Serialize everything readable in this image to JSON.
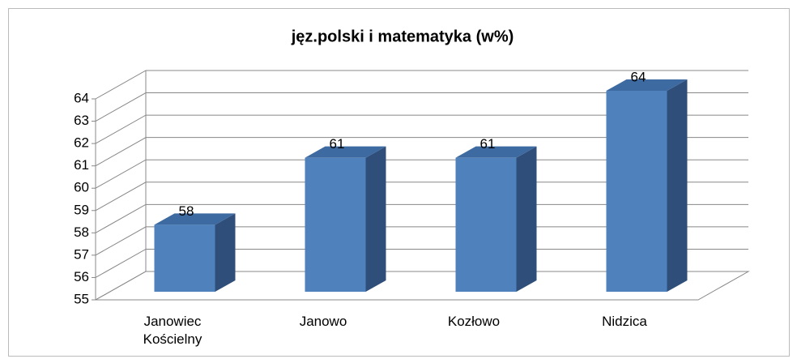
{
  "chart_data": {
    "type": "bar3d",
    "title": "jęz.polski i matematyka (w%)",
    "categories": [
      "Janowiec Kościelny",
      "Janowo",
      "Kozłowo",
      "Nidzica"
    ],
    "values": [
      58,
      61,
      61,
      64
    ],
    "color": "#4f81bd",
    "ylim": [
      55,
      64
    ],
    "yticks": [
      55,
      56,
      57,
      58,
      59,
      60,
      61,
      62,
      63,
      64
    ],
    "grid": true
  }
}
